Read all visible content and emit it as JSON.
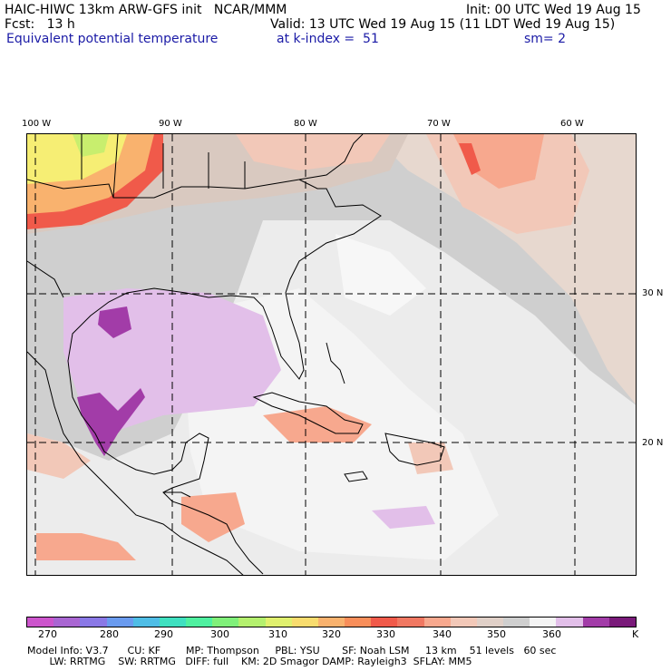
{
  "header": {
    "model_title": "HAIC-HIWC 13km ARW-GFS init   NCAR/MMM",
    "init": "Init: 00 UTC Wed 19 Aug 15",
    "fcst": "Fcst:   13 h",
    "valid": "Valid: 13 UTC Wed 19 Aug 15 (11 LDT Wed 19 Aug 15)",
    "field": "Equivalent potential temperature",
    "level": "at k-index =  51",
    "smooth": "sm= 2"
  },
  "map": {
    "lon_labels": [
      "100 W",
      "90 W",
      "80 W",
      "70 W",
      "60 W"
    ],
    "lat_labels": [
      "30 N",
      "20 N"
    ],
    "colors": {
      "gray": "#cfcfcf",
      "light": "#ececec",
      "white": "#ffffff",
      "lavender": "#e2bfe9",
      "purple": "#a23ca8",
      "tan": "#f2c8b8",
      "salmon": "#f7a88e",
      "red": "#f05a4a",
      "orange": "#f9b26e",
      "yellow": "#f6ee74",
      "lime": "#c8ee6e"
    }
  },
  "colorbar": {
    "colors": [
      "#cc55cc",
      "#a966d2",
      "#8a78e6",
      "#6a9bef",
      "#4fbde6",
      "#3fe0c0",
      "#4ff0a0",
      "#80f07a",
      "#b4f06e",
      "#e0f06e",
      "#f8dc6e",
      "#f9b26e",
      "#f88e5a",
      "#f05a4a",
      "#f07862",
      "#f7a88e",
      "#f2c8b8",
      "#e0d0c8",
      "#cfcfcf",
      "#f4f4f4",
      "#e2bfe9",
      "#a23ca8",
      "#7a1a7a"
    ],
    "ticks": [
      "270",
      "280",
      "290",
      "300",
      "310",
      "320",
      "330",
      "340",
      "350",
      "360"
    ],
    "unit": "K"
  },
  "footer": {
    "line1": "Model Info: V3.7      CU: KF        MP: Thompson     PBL: YSU       SF: Noah LSM     13 km    51 levels   60 sec",
    "line2": "       LW: RRTMG    SW: RRTMG   DIFF: full    KM: 2D Smagor DAMP: Rayleigh3  SFLAY: MM5"
  }
}
